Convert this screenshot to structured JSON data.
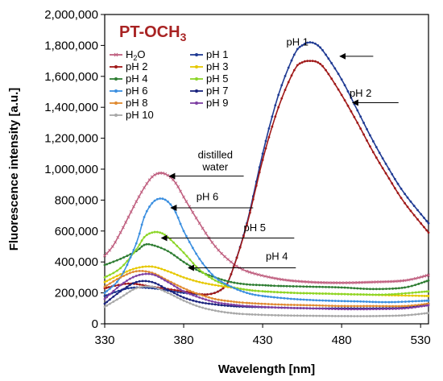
{
  "chart_data": {
    "type": "line",
    "title": "PT-OCH",
    "title_subscript": "3",
    "title_color": "#a82323",
    "xlabel": "Wavelength [nm]",
    "ylabel": "Fluorescence intensity [a.u.]",
    "xlim": [
      330,
      535
    ],
    "ylim": [
      0,
      2000000
    ],
    "x_ticks": [
      330,
      380,
      430,
      480,
      530
    ],
    "y_ticks": [
      0,
      200000,
      400000,
      600000,
      800000,
      1000000,
      1200000,
      1400000,
      1600000,
      1800000,
      2000000
    ],
    "x_tick_labels": [
      "330",
      "380",
      "430",
      "480",
      "530"
    ],
    "y_tick_labels": [
      "0",
      "200,000",
      "400,000",
      "600,000",
      "800,000",
      "1,000,000",
      "1,200,000",
      "1,400,000",
      "1,600,000",
      "1,800,000",
      "2,000,000"
    ],
    "grid": false,
    "legend_position": "top-left",
    "series": [
      {
        "name": "H2O",
        "legend_main": "H",
        "legend_sub": "2",
        "legend_tail": "O",
        "color": "#c06080",
        "marker": "x",
        "x": [
          330,
          335,
          340,
          345,
          350,
          355,
          360,
          365,
          370,
          375,
          380,
          390,
          400,
          410,
          420,
          440,
          460,
          480,
          500,
          520,
          535
        ],
        "y": [
          440000,
          500000,
          590000,
          690000,
          790000,
          880000,
          950000,
          975000,
          960000,
          910000,
          820000,
          650000,
          500000,
          400000,
          340000,
          290000,
          270000,
          265000,
          270000,
          280000,
          315000
        ]
      },
      {
        "name": "pH 1",
        "color": "#1f3a93",
        "marker": "dot",
        "x": [
          330,
          345,
          360,
          380,
          395,
          405,
          410,
          420,
          430,
          440,
          450,
          455,
          460,
          465,
          470,
          480,
          490,
          500,
          510,
          520,
          535
        ],
        "y": [
          180000,
          230000,
          230000,
          200000,
          190000,
          230000,
          320000,
          650000,
          1100000,
          1480000,
          1740000,
          1800000,
          1820000,
          1800000,
          1740000,
          1580000,
          1380000,
          1180000,
          1000000,
          840000,
          650000
        ]
      },
      {
        "name": "pH 2",
        "color": "#a01818",
        "marker": "dot",
        "x": [
          330,
          345,
          360,
          380,
          395,
          405,
          410,
          420,
          430,
          440,
          450,
          455,
          460,
          465,
          470,
          480,
          490,
          500,
          510,
          520,
          535
        ],
        "y": [
          230000,
          260000,
          240000,
          210000,
          190000,
          230000,
          320000,
          640000,
          1060000,
          1400000,
          1640000,
          1690000,
          1700000,
          1690000,
          1640000,
          1480000,
          1300000,
          1110000,
          940000,
          780000,
          590000
        ]
      },
      {
        "name": "pH 3",
        "color": "#e6c800",
        "marker": "dot",
        "x": [
          330,
          340,
          350,
          360,
          370,
          380,
          390,
          400,
          410,
          420,
          430,
          450,
          470,
          490,
          510,
          535
        ],
        "y": [
          270000,
          320000,
          360000,
          370000,
          340000,
          300000,
          270000,
          250000,
          235000,
          220000,
          210000,
          200000,
          195000,
          190000,
          185000,
          180000
        ]
      },
      {
        "name": "pH 4",
        "color": "#2e7d32",
        "marker": "dot",
        "x": [
          330,
          340,
          350,
          355,
          360,
          370,
          380,
          390,
          400,
          410,
          420,
          430,
          440,
          460,
          480,
          500,
          520,
          535
        ],
        "y": [
          380000,
          420000,
          470000,
          510000,
          510000,
          470000,
          400000,
          340000,
          300000,
          270000,
          255000,
          250000,
          245000,
          240000,
          235000,
          225000,
          235000,
          280000
        ]
      },
      {
        "name": "pH 5",
        "color": "#8cd628",
        "marker": "dot",
        "x": [
          330,
          340,
          350,
          355,
          360,
          365,
          370,
          380,
          390,
          400,
          410,
          420,
          430,
          450,
          470,
          490,
          510,
          535
        ],
        "y": [
          300000,
          360000,
          480000,
          560000,
          590000,
          590000,
          560000,
          460000,
          350000,
          280000,
          240000,
          220000,
          210000,
          200000,
          195000,
          190000,
          190000,
          210000
        ]
      },
      {
        "name": "pH 6",
        "color": "#3b8fe0",
        "marker": "dot",
        "x": [
          330,
          340,
          350,
          355,
          360,
          365,
          370,
          375,
          380,
          390,
          400,
          410,
          420,
          430,
          450,
          470,
          490,
          510,
          535
        ],
        "y": [
          200000,
          300000,
          520000,
          690000,
          780000,
          810000,
          790000,
          720000,
          600000,
          420000,
          300000,
          240000,
          200000,
          180000,
          160000,
          150000,
          145000,
          140000,
          150000
        ]
      },
      {
        "name": "pH 7",
        "color": "#1a237e",
        "marker": "dot",
        "x": [
          330,
          340,
          350,
          360,
          370,
          380,
          390,
          400,
          410,
          420,
          440,
          460,
          480,
          500,
          520,
          535
        ],
        "y": [
          130000,
          210000,
          270000,
          270000,
          220000,
          170000,
          140000,
          125000,
          115000,
          110000,
          105000,
          100000,
          100000,
          100000,
          105000,
          130000
        ]
      },
      {
        "name": "pH 8",
        "color": "#e08a30",
        "marker": "dot",
        "x": [
          330,
          340,
          350,
          360,
          370,
          380,
          390,
          400,
          410,
          420,
          440,
          460,
          480,
          500,
          520,
          535
        ],
        "y": [
          240000,
          300000,
          340000,
          330000,
          280000,
          230000,
          190000,
          160000,
          145000,
          135000,
          125000,
          120000,
          115000,
          115000,
          115000,
          130000
        ]
      },
      {
        "name": "pH 9",
        "color": "#7e3fa3",
        "marker": "dot",
        "x": [
          330,
          340,
          350,
          360,
          370,
          380,
          390,
          400,
          410,
          420,
          440,
          460,
          480,
          500,
          520,
          535
        ],
        "y": [
          160000,
          250000,
          310000,
          320000,
          270000,
          210000,
          170000,
          140000,
          125000,
          115000,
          105000,
          100000,
          95000,
          95000,
          100000,
          120000
        ]
      },
      {
        "name": "pH 10",
        "color": "#a8a8a8",
        "marker": "dot",
        "x": [
          330,
          340,
          350,
          360,
          370,
          380,
          390,
          400,
          410,
          420,
          440,
          460,
          480,
          500,
          520,
          535
        ],
        "y": [
          110000,
          170000,
          230000,
          240000,
          200000,
          150000,
          110000,
          85000,
          70000,
          62000,
          55000,
          52000,
          50000,
          50000,
          55000,
          70000
        ]
      }
    ],
    "annotations": [
      {
        "text": "pH 1",
        "lines": [
          "pH 1"
        ],
        "text_x": 452,
        "text_y": 1800000,
        "arrow_from_x": 500,
        "arrow_from_y": 1730000,
        "arrow_to_x": 479,
        "arrow_to_y": 1730000
      },
      {
        "text": "pH 2",
        "lines": [
          "pH 2"
        ],
        "text_x": 492,
        "text_y": 1470000,
        "arrow_from_x": 516,
        "arrow_from_y": 1430000,
        "arrow_to_x": 487,
        "arrow_to_y": 1430000
      },
      {
        "text": "distilled water",
        "lines": [
          "distilled",
          "water"
        ],
        "text_x": 400,
        "text_y": 1070000,
        "arrow_from_x": 418,
        "arrow_from_y": 955000,
        "arrow_to_x": 371,
        "arrow_to_y": 955000
      },
      {
        "text": "pH 6",
        "lines": [
          "pH 6"
        ],
        "text_x": 395,
        "text_y": 800000,
        "arrow_from_x": 424,
        "arrow_from_y": 750000,
        "arrow_to_x": 372,
        "arrow_to_y": 750000
      },
      {
        "text": "pH 5",
        "lines": [
          "pH 5"
        ],
        "text_x": 425,
        "text_y": 600000,
        "arrow_from_x": 450,
        "arrow_from_y": 555000,
        "arrow_to_x": 366,
        "arrow_to_y": 555000
      },
      {
        "text": "pH 4",
        "lines": [
          "pH 4"
        ],
        "text_x": 439,
        "text_y": 415000,
        "arrow_from_x": 451,
        "arrow_from_y": 362000,
        "arrow_to_x": 383,
        "arrow_to_y": 362000
      }
    ]
  }
}
